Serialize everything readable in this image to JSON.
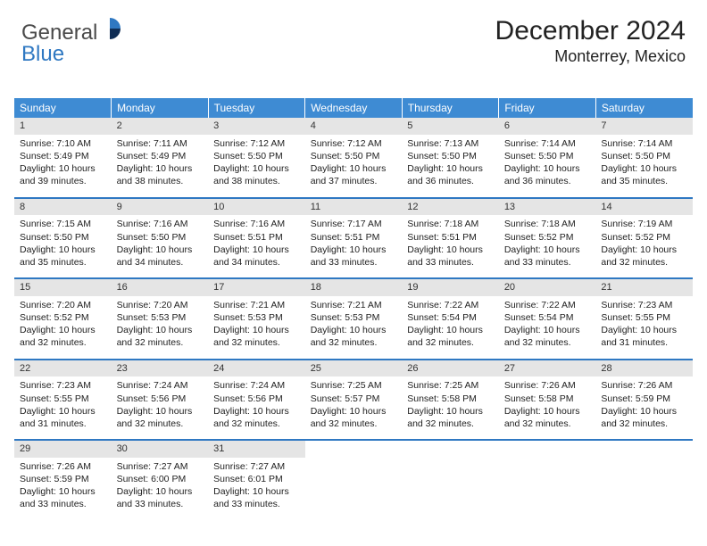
{
  "brand": {
    "name1": "General",
    "name2": "Blue",
    "pie_colors": [
      "#2f78c2",
      "#0f2d55"
    ]
  },
  "header": {
    "title": "December 2024",
    "subtitle": "Monterrey, Mexico"
  },
  "colors": {
    "header_bg": "#3e8bd3",
    "row_divider": "#2f78c2",
    "daynum_bg": "#e5e5e5",
    "text": "#222222",
    "page_bg": "#ffffff"
  },
  "days_of_week": [
    "Sunday",
    "Monday",
    "Tuesday",
    "Wednesday",
    "Thursday",
    "Friday",
    "Saturday"
  ],
  "weeks": [
    [
      {
        "num": "1",
        "sunrise": "Sunrise: 7:10 AM",
        "sunset": "Sunset: 5:49 PM",
        "daylight": "Daylight: 10 hours and 39 minutes."
      },
      {
        "num": "2",
        "sunrise": "Sunrise: 7:11 AM",
        "sunset": "Sunset: 5:49 PM",
        "daylight": "Daylight: 10 hours and 38 minutes."
      },
      {
        "num": "3",
        "sunrise": "Sunrise: 7:12 AM",
        "sunset": "Sunset: 5:50 PM",
        "daylight": "Daylight: 10 hours and 38 minutes."
      },
      {
        "num": "4",
        "sunrise": "Sunrise: 7:12 AM",
        "sunset": "Sunset: 5:50 PM",
        "daylight": "Daylight: 10 hours and 37 minutes."
      },
      {
        "num": "5",
        "sunrise": "Sunrise: 7:13 AM",
        "sunset": "Sunset: 5:50 PM",
        "daylight": "Daylight: 10 hours and 36 minutes."
      },
      {
        "num": "6",
        "sunrise": "Sunrise: 7:14 AM",
        "sunset": "Sunset: 5:50 PM",
        "daylight": "Daylight: 10 hours and 36 minutes."
      },
      {
        "num": "7",
        "sunrise": "Sunrise: 7:14 AM",
        "sunset": "Sunset: 5:50 PM",
        "daylight": "Daylight: 10 hours and 35 minutes."
      }
    ],
    [
      {
        "num": "8",
        "sunrise": "Sunrise: 7:15 AM",
        "sunset": "Sunset: 5:50 PM",
        "daylight": "Daylight: 10 hours and 35 minutes."
      },
      {
        "num": "9",
        "sunrise": "Sunrise: 7:16 AM",
        "sunset": "Sunset: 5:50 PM",
        "daylight": "Daylight: 10 hours and 34 minutes."
      },
      {
        "num": "10",
        "sunrise": "Sunrise: 7:16 AM",
        "sunset": "Sunset: 5:51 PM",
        "daylight": "Daylight: 10 hours and 34 minutes."
      },
      {
        "num": "11",
        "sunrise": "Sunrise: 7:17 AM",
        "sunset": "Sunset: 5:51 PM",
        "daylight": "Daylight: 10 hours and 33 minutes."
      },
      {
        "num": "12",
        "sunrise": "Sunrise: 7:18 AM",
        "sunset": "Sunset: 5:51 PM",
        "daylight": "Daylight: 10 hours and 33 minutes."
      },
      {
        "num": "13",
        "sunrise": "Sunrise: 7:18 AM",
        "sunset": "Sunset: 5:52 PM",
        "daylight": "Daylight: 10 hours and 33 minutes."
      },
      {
        "num": "14",
        "sunrise": "Sunrise: 7:19 AM",
        "sunset": "Sunset: 5:52 PM",
        "daylight": "Daylight: 10 hours and 32 minutes."
      }
    ],
    [
      {
        "num": "15",
        "sunrise": "Sunrise: 7:20 AM",
        "sunset": "Sunset: 5:52 PM",
        "daylight": "Daylight: 10 hours and 32 minutes."
      },
      {
        "num": "16",
        "sunrise": "Sunrise: 7:20 AM",
        "sunset": "Sunset: 5:53 PM",
        "daylight": "Daylight: 10 hours and 32 minutes."
      },
      {
        "num": "17",
        "sunrise": "Sunrise: 7:21 AM",
        "sunset": "Sunset: 5:53 PM",
        "daylight": "Daylight: 10 hours and 32 minutes."
      },
      {
        "num": "18",
        "sunrise": "Sunrise: 7:21 AM",
        "sunset": "Sunset: 5:53 PM",
        "daylight": "Daylight: 10 hours and 32 minutes."
      },
      {
        "num": "19",
        "sunrise": "Sunrise: 7:22 AM",
        "sunset": "Sunset: 5:54 PM",
        "daylight": "Daylight: 10 hours and 32 minutes."
      },
      {
        "num": "20",
        "sunrise": "Sunrise: 7:22 AM",
        "sunset": "Sunset: 5:54 PM",
        "daylight": "Daylight: 10 hours and 32 minutes."
      },
      {
        "num": "21",
        "sunrise": "Sunrise: 7:23 AM",
        "sunset": "Sunset: 5:55 PM",
        "daylight": "Daylight: 10 hours and 31 minutes."
      }
    ],
    [
      {
        "num": "22",
        "sunrise": "Sunrise: 7:23 AM",
        "sunset": "Sunset: 5:55 PM",
        "daylight": "Daylight: 10 hours and 31 minutes."
      },
      {
        "num": "23",
        "sunrise": "Sunrise: 7:24 AM",
        "sunset": "Sunset: 5:56 PM",
        "daylight": "Daylight: 10 hours and 32 minutes."
      },
      {
        "num": "24",
        "sunrise": "Sunrise: 7:24 AM",
        "sunset": "Sunset: 5:56 PM",
        "daylight": "Daylight: 10 hours and 32 minutes."
      },
      {
        "num": "25",
        "sunrise": "Sunrise: 7:25 AM",
        "sunset": "Sunset: 5:57 PM",
        "daylight": "Daylight: 10 hours and 32 minutes."
      },
      {
        "num": "26",
        "sunrise": "Sunrise: 7:25 AM",
        "sunset": "Sunset: 5:58 PM",
        "daylight": "Daylight: 10 hours and 32 minutes."
      },
      {
        "num": "27",
        "sunrise": "Sunrise: 7:26 AM",
        "sunset": "Sunset: 5:58 PM",
        "daylight": "Daylight: 10 hours and 32 minutes."
      },
      {
        "num": "28",
        "sunrise": "Sunrise: 7:26 AM",
        "sunset": "Sunset: 5:59 PM",
        "daylight": "Daylight: 10 hours and 32 minutes."
      }
    ],
    [
      {
        "num": "29",
        "sunrise": "Sunrise: 7:26 AM",
        "sunset": "Sunset: 5:59 PM",
        "daylight": "Daylight: 10 hours and 33 minutes."
      },
      {
        "num": "30",
        "sunrise": "Sunrise: 7:27 AM",
        "sunset": "Sunset: 6:00 PM",
        "daylight": "Daylight: 10 hours and 33 minutes."
      },
      {
        "num": "31",
        "sunrise": "Sunrise: 7:27 AM",
        "sunset": "Sunset: 6:01 PM",
        "daylight": "Daylight: 10 hours and 33 minutes."
      },
      null,
      null,
      null,
      null
    ]
  ]
}
